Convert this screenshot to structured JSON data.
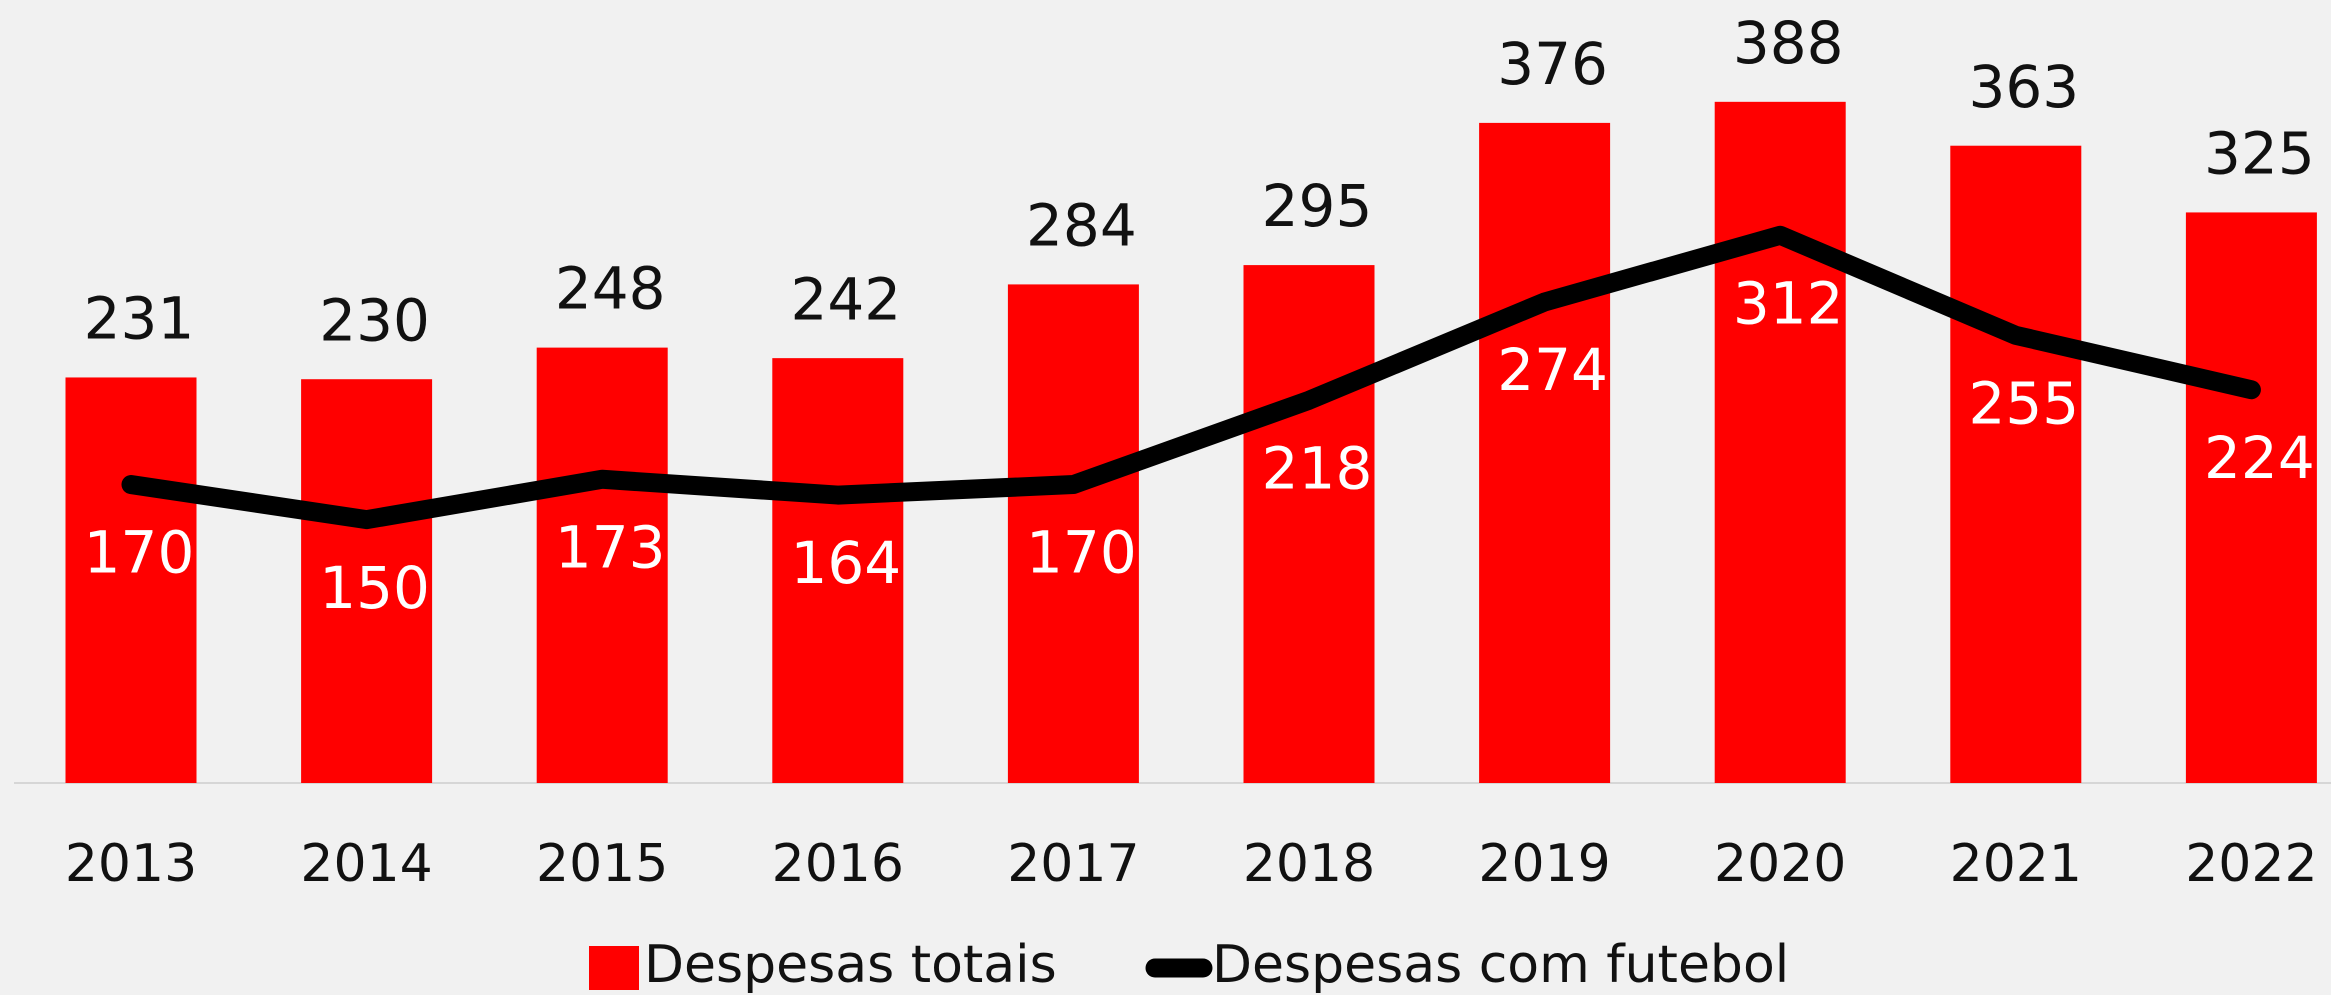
{
  "chart_data": {
    "type": "bar-line",
    "categories": [
      "2013",
      "2014",
      "2015",
      "2016",
      "2017",
      "2018",
      "2019",
      "2020",
      "2021",
      "2022"
    ],
    "series": [
      {
        "name": "Despesas totais",
        "type": "bar",
        "color": "#ff0000",
        "values": [
          231,
          230,
          248,
          242,
          284,
          295,
          376,
          388,
          363,
          325
        ]
      },
      {
        "name": "Despesas com futebol",
        "type": "line",
        "color": "#000000",
        "values": [
          170,
          150,
          173,
          164,
          170,
          218,
          274,
          312,
          255,
          224
        ]
      }
    ],
    "ylim": [
      0,
      446
    ],
    "legend": "bottom"
  }
}
